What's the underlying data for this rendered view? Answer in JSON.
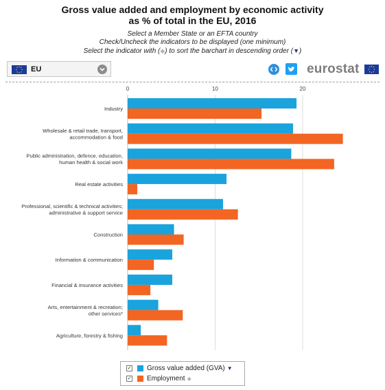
{
  "header": {
    "title_line1": "Gross value added and employment by economic activity",
    "title_line2": "as % of total in the EU, 2016",
    "instruction_line1": "Select a Member State or an EFTA country",
    "instruction_line2": "Check/Uncheck the indicators to be displayed (one minimum)",
    "instruction_line3_a": "Select the indicator with (",
    "instruction_line3_b": ") to sort the barchart in descending order (",
    "instruction_line3_c": ")"
  },
  "selector": {
    "selected_value": "EU"
  },
  "brand": {
    "logo_text": "eurostat"
  },
  "colors": {
    "gva": "#1aa3dd",
    "employment": "#f26522",
    "grid": "#dddddd",
    "brand_blue": "#1a3a9c",
    "eu_yellow": "#ffdd00"
  },
  "icons": {
    "embed": "embed-code-icon",
    "twitter": "twitter-icon",
    "dropdown": "chevron-down-icon"
  },
  "legend": {
    "items": [
      {
        "label": "Gross value added (GVA)",
        "checked": true,
        "sort_state": "sorted-descending"
      },
      {
        "label": "Employment",
        "checked": true,
        "sort_state": "sortable"
      }
    ]
  },
  "chart_data": {
    "type": "bar",
    "orientation": "horizontal",
    "title": "Gross value added and employment by economic activity as % of total in the EU, 2016",
    "xlabel": "",
    "ylabel": "",
    "xlim": [
      0,
      25
    ],
    "x_ticks": [
      0,
      10,
      20
    ],
    "grid": true,
    "legend_position": "bottom",
    "categories": [
      [
        "Industry"
      ],
      [
        "Wholesale & retail trade, transport,",
        "accommodation & food"
      ],
      [
        "Public administration, defence, education,",
        "human health & social work"
      ],
      [
        "Real estate activities"
      ],
      [
        "Professional, scientific & technical activities;",
        "administrative & support service"
      ],
      [
        "Construction"
      ],
      [
        "Information & communication"
      ],
      [
        "Financial & insurance activities"
      ],
      [
        "Arts, entertainment & recreation;",
        "other services*"
      ],
      [
        "Agriculture, forestry & fishing"
      ]
    ],
    "series": [
      {
        "name": "Gross value added (GVA)",
        "values": [
          19.3,
          18.9,
          18.7,
          11.3,
          10.9,
          5.3,
          5.1,
          5.1,
          3.5,
          1.5
        ]
      },
      {
        "name": "Employment",
        "values": [
          15.3,
          24.6,
          23.6,
          1.1,
          12.6,
          6.4,
          3.0,
          2.6,
          6.3,
          4.5
        ]
      }
    ]
  }
}
